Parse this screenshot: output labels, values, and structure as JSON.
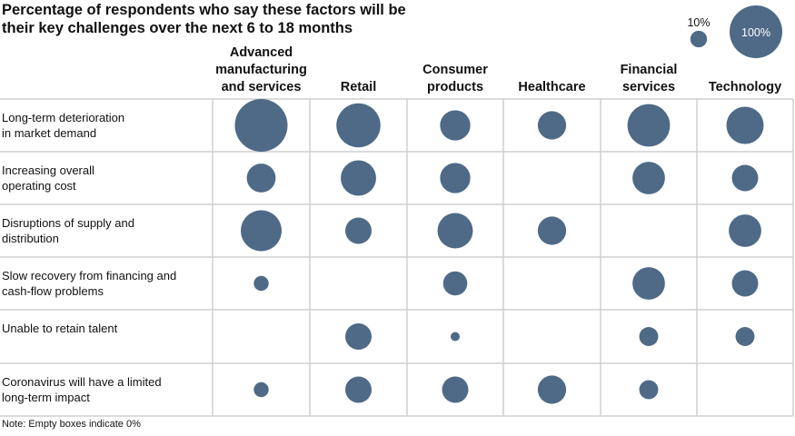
{
  "chart_data": {
    "type": "bubble-matrix",
    "title_lines": [
      "Percentage of respondents who say these factors will be",
      "their key challenges over the next 6 to 18 months"
    ],
    "columns": [
      {
        "label_lines": [
          "Advanced",
          "manufacturing",
          "and services"
        ]
      },
      {
        "label_lines": [
          "Retail"
        ]
      },
      {
        "label_lines": [
          "Consumer",
          "products"
        ]
      },
      {
        "label_lines": [
          "Healthcare"
        ]
      },
      {
        "label_lines": [
          "Financial",
          "services"
        ]
      },
      {
        "label_lines": [
          "Technology"
        ]
      }
    ],
    "rows": [
      {
        "label_lines": [
          "Long-term deterioration",
          "in market demand"
        ]
      },
      {
        "label_lines": [
          "Increasing overall",
          "operating cost"
        ]
      },
      {
        "label_lines": [
          "Disruptions of supply and",
          "distribution"
        ]
      },
      {
        "label_lines": [
          "Slow recovery from financing and",
          "cash-flow problems"
        ]
      },
      {
        "label_lines": [
          "Unable to retain talent"
        ]
      },
      {
        "label_lines": [
          "Coronavirus will have a limited",
          "long-term impact"
        ]
      }
    ],
    "values": [
      [
        100,
        70,
        33,
        29,
        65,
        50
      ],
      [
        30,
        45,
        33,
        0,
        38,
        25
      ],
      [
        60,
        25,
        45,
        29,
        0,
        38
      ],
      [
        8,
        0,
        21,
        0,
        38,
        25
      ],
      [
        0,
        25,
        3,
        0,
        13,
        13
      ],
      [
        8,
        25,
        25,
        29,
        13,
        0
      ]
    ],
    "legend": [
      {
        "label": "10%",
        "value": 10
      },
      {
        "label": "100%",
        "value": 100
      }
    ],
    "note": "Note: Empty boxes indicate 0%",
    "bubble_color": "#4e6a87",
    "grid_color": "#cfcfcf"
  }
}
